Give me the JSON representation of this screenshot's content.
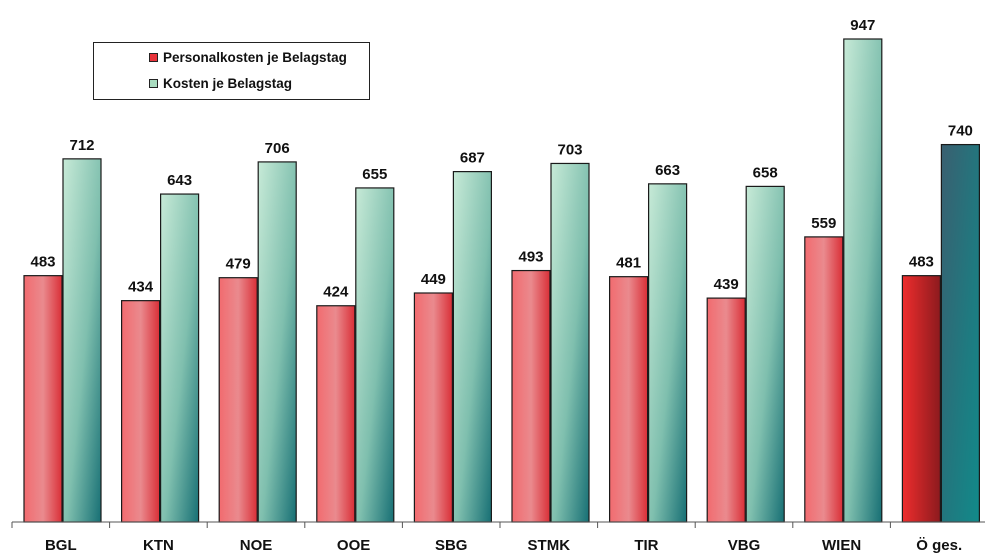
{
  "chart_data": {
    "type": "bar",
    "categories": [
      "BGL",
      "KTN",
      "NOE",
      "OOE",
      "SBG",
      "STMK",
      "TIR",
      "VBG",
      "WIEN",
      "Ö ges."
    ],
    "series": [
      {
        "name": "Personalkosten je Belagstag",
        "values": [
          483,
          434,
          479,
          424,
          449,
          493,
          481,
          439,
          559,
          483
        ]
      },
      {
        "name": "Kosten je Belagstag",
        "values": [
          712,
          643,
          706,
          655,
          687,
          703,
          663,
          658,
          947,
          740
        ]
      }
    ],
    "ylim": [
      0,
      1000
    ],
    "grid": false,
    "legend_position": "top-left",
    "colors": {
      "personal": "#e8333a",
      "kosten": "#a9dcc0",
      "total_personal": "#c0202a",
      "total_kosten": "#1e6f7a"
    }
  }
}
